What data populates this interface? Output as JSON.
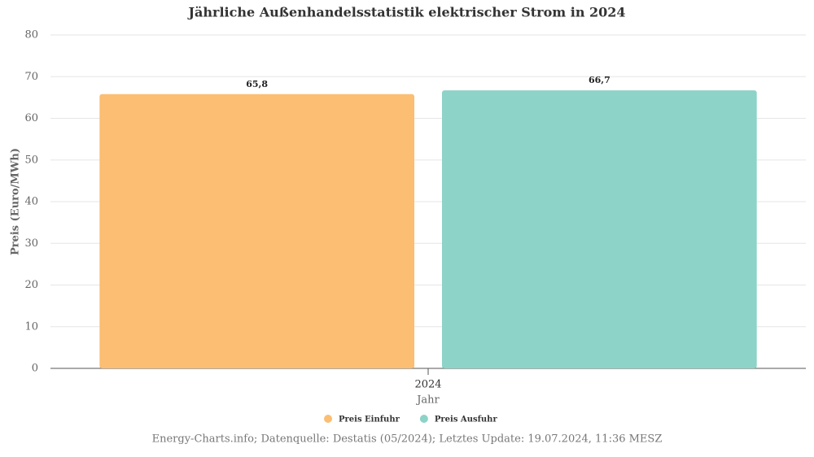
{
  "chart_data": {
    "type": "bar",
    "title": "Jährliche Außenhandelsstatistik elektrischer Strom in 2024",
    "x_label": "Jahr",
    "y_label": "Preis (Euro/MWh)",
    "categories": [
      "2024"
    ],
    "series": [
      {
        "name": "Preis Einfuhr",
        "color": "#fbbe72",
        "values": [
          65.8
        ],
        "value_labels": [
          "65,8"
        ]
      },
      {
        "name": "Preis Ausfuhr",
        "color": "#8dd3c7",
        "values": [
          66.7
        ],
        "value_labels": [
          "66,7"
        ]
      }
    ],
    "ylim": [
      0,
      80
    ],
    "yticks": [
      0,
      10,
      20,
      30,
      40,
      50,
      60,
      70,
      80
    ],
    "grid": true,
    "legend": "bottom",
    "caption": "Energy-Charts.info; Datenquelle: Destatis (05/2024); Letztes Update: 19.07.2024, 11:36 MESZ"
  }
}
